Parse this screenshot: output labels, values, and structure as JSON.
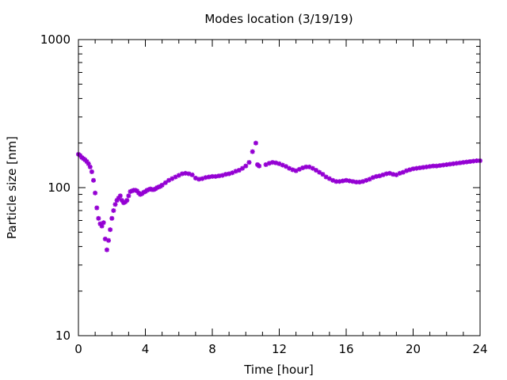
{
  "chart_data": {
    "type": "scatter",
    "title": "Modes location (3/19/19)",
    "xlabel": "Time [hour]",
    "ylabel": "Particle size [nm]",
    "xlim": [
      0,
      24
    ],
    "ylim": [
      10,
      1000
    ],
    "yscale": "log",
    "grid": false,
    "marker_color": "#9400d3",
    "x_ticks": [
      0,
      4,
      8,
      12,
      16,
      20,
      24
    ],
    "x_minor_step": 1,
    "y_ticks": [
      10,
      100,
      1000
    ],
    "x_tick_labels": [
      "0",
      "4",
      "8",
      "12",
      "16",
      "20",
      "24"
    ],
    "y_tick_labels": [
      "10",
      "100",
      "1000"
    ],
    "series": [
      {
        "x": [
          0.0,
          0.1,
          0.2,
          0.3,
          0.4,
          0.5,
          0.6,
          0.7,
          0.8,
          0.9,
          1.0,
          1.1,
          1.2,
          1.3,
          1.4,
          1.5,
          1.6,
          1.7,
          1.8,
          1.9,
          2.0,
          2.1,
          2.2,
          2.3,
          2.4,
          2.5,
          2.6,
          2.7,
          2.8,
          2.9,
          3.0,
          3.1,
          3.2,
          3.3,
          3.4,
          3.5,
          3.6,
          3.7,
          3.8,
          3.9,
          4.0,
          4.1,
          4.2,
          4.3,
          4.4,
          4.5,
          4.6,
          4.7,
          4.8,
          4.9,
          5.0,
          5.2,
          5.4,
          5.6,
          5.8,
          6.0,
          6.2,
          6.4,
          6.6,
          6.8,
          7.0,
          7.2,
          7.4,
          7.6,
          7.8,
          8.0,
          8.2,
          8.4,
          8.6,
          8.8,
          9.0,
          9.2,
          9.4,
          9.6,
          9.8,
          10.0,
          10.2,
          10.4,
          10.6,
          10.7,
          10.8,
          11.2,
          11.4,
          11.6,
          11.8,
          12.0,
          12.2,
          12.4,
          12.6,
          12.8,
          13.0,
          13.2,
          13.4,
          13.6,
          13.8,
          14.0,
          14.2,
          14.4,
          14.6,
          14.8,
          15.0,
          15.2,
          15.4,
          15.6,
          15.8,
          16.0,
          16.2,
          16.4,
          16.6,
          16.8,
          17.0,
          17.2,
          17.4,
          17.6,
          17.8,
          18.0,
          18.2,
          18.4,
          18.6,
          18.8,
          19.0,
          19.2,
          19.4,
          19.6,
          19.8,
          20.0,
          20.2,
          20.4,
          20.6,
          20.8,
          21.0,
          21.2,
          21.4,
          21.6,
          21.8,
          22.0,
          22.2,
          22.4,
          22.6,
          22.8,
          23.0,
          23.2,
          23.4,
          23.6,
          23.8,
          24.0
        ],
        "y": [
          168,
          165,
          160,
          157,
          154,
          150,
          145,
          138,
          128,
          112,
          92,
          73,
          62,
          57,
          55,
          58,
          45,
          38,
          44,
          52,
          62,
          70,
          77,
          82,
          85,
          88,
          82,
          79,
          80,
          82,
          88,
          94,
          95,
          96,
          96,
          95,
          92,
          90,
          91,
          93,
          94,
          96,
          97,
          98,
          97,
          97,
          98,
          100,
          101,
          102,
          104,
          108,
          112,
          115,
          118,
          121,
          124,
          125,
          124,
          122,
          116,
          114,
          115,
          117,
          118,
          119,
          119,
          120,
          121,
          123,
          124,
          126,
          129,
          131,
          135,
          140,
          148,
          175,
          200,
          143,
          140,
          143,
          146,
          148,
          147,
          145,
          142,
          139,
          135,
          132,
          130,
          133,
          136,
          138,
          138,
          135,
          131,
          127,
          123,
          118,
          115,
          112,
          110,
          110,
          111,
          112,
          111,
          110,
          109,
          109,
          110,
          112,
          114,
          117,
          119,
          120,
          122,
          124,
          125,
          123,
          122,
          125,
          127,
          130,
          132,
          134,
          135,
          136,
          137,
          138,
          139,
          140,
          140,
          141,
          142,
          143,
          144,
          145,
          146,
          147,
          148,
          149,
          150,
          151,
          152,
          152
        ]
      }
    ]
  }
}
